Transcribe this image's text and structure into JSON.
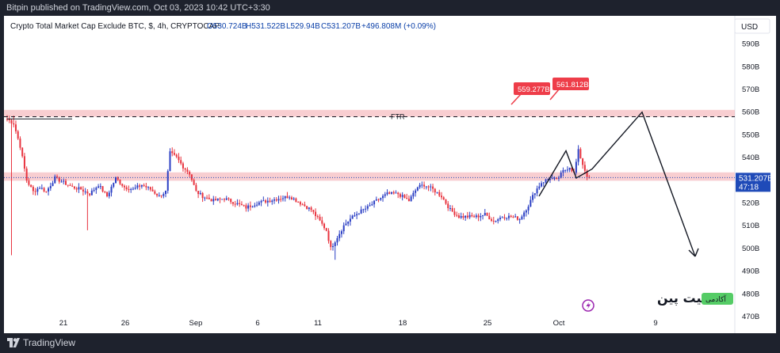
{
  "header": {
    "published": "Bitpin published on TradingView.com, Oct 03, 2023 10:42 UTC+3:30"
  },
  "legend": {
    "symbol": "Crypto Total Market Cap Exclude BTC, $, 4h, CRYPTOCAP",
    "open": "O530.724B",
    "high": "H531.522B",
    "low": "L529.94B",
    "close": "C531.207B",
    "change": "+496.808M (+0.09%)"
  },
  "currency_label": "USD",
  "price_tag": {
    "value": "531.207B",
    "countdown": "47:18"
  },
  "annotations": {
    "ftr_label": "FTR",
    "label_1": "559.277B",
    "label_2": "561.812B",
    "watermark_fa": "بیت پین",
    "watermark_badge": "آکادمی"
  },
  "footer": {
    "brand": "TradingView"
  },
  "colors": {
    "up": "#2b3fc4",
    "down": "#e8333e",
    "zone": "#f2a6ab",
    "tag_bg": "#1f4ab8",
    "label_bg": "#ee3d49",
    "badge_bg": "#55cc66"
  },
  "icons": {
    "logo": "tradingview-logo-icon",
    "lightning": "lightning-icon"
  },
  "chart_data": {
    "type": "candlestick",
    "title": "Crypto Total Market Cap Exclude BTC, $, 4h, CRYPTOCAP",
    "ylabel": "USD",
    "ylim": [
      465,
      595
    ],
    "y_ticks": [
      "470B",
      "480B",
      "490B",
      "500B",
      "510B",
      "520B",
      "530B",
      "540B",
      "550B",
      "560B",
      "570B",
      "580B",
      "590B"
    ],
    "x_ticks": [
      "21",
      "26",
      "Sep",
      "6",
      "11",
      "18",
      "25",
      "Oct",
      "9"
    ],
    "close_anchors": [
      [
        0,
        557
      ],
      [
        3,
        555
      ],
      [
        6,
        545
      ],
      [
        9,
        530
      ],
      [
        12,
        525
      ],
      [
        15,
        527
      ],
      [
        18,
        525
      ],
      [
        22,
        531
      ],
      [
        26,
        529
      ],
      [
        30,
        527
      ],
      [
        34,
        526
      ],
      [
        38,
        524
      ],
      [
        42,
        528
      ],
      [
        46,
        523
      ],
      [
        50,
        531
      ],
      [
        54,
        527
      ],
      [
        58,
        526
      ],
      [
        62,
        528
      ],
      [
        66,
        526
      ],
      [
        70,
        523
      ],
      [
        73,
        525
      ],
      [
        75,
        542
      ],
      [
        78,
        540
      ],
      [
        81,
        536
      ],
      [
        84,
        533
      ],
      [
        87,
        525
      ],
      [
        90,
        523
      ],
      [
        95,
        521
      ],
      [
        100,
        522
      ],
      [
        105,
        520
      ],
      [
        110,
        518
      ],
      [
        115,
        520
      ],
      [
        120,
        521
      ],
      [
        125,
        522
      ],
      [
        130,
        523
      ],
      [
        135,
        520
      ],
      [
        140,
        517
      ],
      [
        144,
        512
      ],
      [
        147,
        508
      ],
      [
        149,
        500
      ],
      [
        152,
        505
      ],
      [
        155,
        510
      ],
      [
        158,
        513
      ],
      [
        162,
        516
      ],
      [
        166,
        518
      ],
      [
        170,
        521
      ],
      [
        175,
        524
      ],
      [
        180,
        524
      ],
      [
        185,
        521
      ],
      [
        189,
        527
      ],
      [
        192,
        528
      ],
      [
        196,
        526
      ],
      [
        200,
        523
      ],
      [
        204,
        517
      ],
      [
        208,
        514
      ],
      [
        212,
        514
      ],
      [
        216,
        514
      ],
      [
        220,
        515
      ],
      [
        224,
        512
      ],
      [
        228,
        514
      ],
      [
        232,
        514
      ],
      [
        236,
        513
      ],
      [
        240,
        519
      ],
      [
        243,
        525
      ],
      [
        246,
        529
      ],
      [
        250,
        531
      ],
      [
        253,
        530
      ],
      [
        256,
        534
      ],
      [
        259,
        536
      ],
      [
        261,
        533
      ],
      [
        263,
        543
      ],
      [
        265,
        537
      ],
      [
        267,
        532
      ],
      [
        268,
        531.2
      ]
    ],
    "zones": [
      {
        "label": "upper-zone",
        "y": [
          558,
          561
        ]
      },
      {
        "label": "lower-zone",
        "y": [
          529.8,
          533.5
        ]
      }
    ],
    "lines": [
      {
        "label": "FTR",
        "y": 558,
        "style": "dashed"
      },
      {
        "label": "left-resistance",
        "y": 557,
        "style": "solid"
      }
    ],
    "labels": [
      {
        "text": "559.277B",
        "y": 559.277
      },
      {
        "text": "561.812B",
        "y": 561.812
      }
    ],
    "projection_path": [
      [
        529,
        523
      ],
      [
        535,
        543
      ],
      [
        537,
        531
      ],
      [
        545,
        535
      ],
      [
        562,
        560
      ],
      [
        579,
        496.5
      ]
    ],
    "last_price": 531.207
  }
}
